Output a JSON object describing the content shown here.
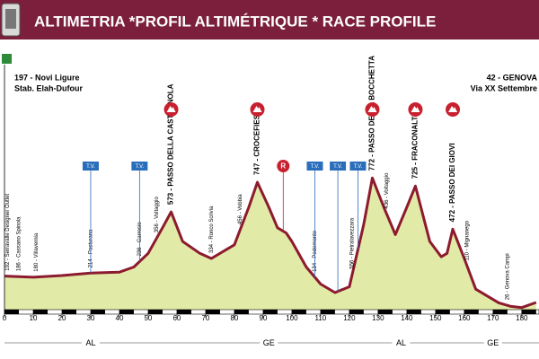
{
  "chart_data": {
    "type": "area",
    "title": "ALTIMETRIA *PROFIL ALTIMÉTRIQUE * RACE PROFILE",
    "start": {
      "name": "197 - Novi Ligure",
      "place": "Stab. Elah-Dufour"
    },
    "finish": {
      "name": "42 - GENOVA",
      "place": "Via XX Settembre"
    },
    "x": [
      0,
      10,
      20,
      30,
      40,
      45,
      50,
      55,
      58,
      62,
      68,
      72,
      80,
      85,
      88,
      92,
      95,
      98,
      100,
      105,
      110,
      115,
      120,
      125,
      128,
      132,
      136,
      140,
      143,
      148,
      152,
      154,
      156,
      160,
      164,
      168,
      172,
      176,
      180,
      185
    ],
    "values": [
      197,
      190,
      200,
      214,
      220,
      250,
      330,
      480,
      573,
      400,
      330,
      300,
      380,
      600,
      747,
      600,
      480,
      450,
      400,
      250,
      150,
      100,
      134,
      500,
      772,
      600,
      440,
      600,
      725,
      400,
      310,
      330,
      472,
      300,
      120,
      80,
      40,
      20,
      12,
      42
    ],
    "color": "#8c1b2e",
    "fill": "#e2eaa8",
    "xlim": [
      0,
      186
    ],
    "ylim": [
      0,
      900
    ],
    "xticks": [
      0,
      10,
      20,
      30,
      40,
      50,
      60,
      70,
      80,
      90,
      100,
      110,
      120,
      130,
      140,
      150,
      160,
      170,
      180
    ],
    "climbs": [
      {
        "label": "573 - PASSO DELLA CASTAGNOLA",
        "x": 58
      },
      {
        "label": "747 - CROCEFIESCHI",
        "x": 88
      },
      {
        "label": "772 - PASSO DELLA BOCCHETTA",
        "x": 128
      },
      {
        "label": "725 - FRACONALTO",
        "x": 143
      },
      {
        "label": "472 - PASSO DEI GIOVI",
        "x": 156
      }
    ],
    "towns": [
      {
        "label": "192 - Serravalle Designer Outlet",
        "x": 1
      },
      {
        "label": "186 - Cassano Spinola",
        "x": 5
      },
      {
        "label": "180 - Villavernia",
        "x": 11
      },
      {
        "label": "214 - Pasturana",
        "x": 30
      },
      {
        "label": "236 - Carrosio",
        "x": 47
      },
      {
        "label": "356 - Voltaggio",
        "x": 53
      },
      {
        "label": "334 - Ronco Scrivia",
        "x": 72
      },
      {
        "label": "456 - Vobbia",
        "x": 82
      },
      {
        "label": "134 - Pedemonte",
        "x": 108
      },
      {
        "label": "556 - Pietralavezzara",
        "x": 121
      },
      {
        "label": "436 - Voltaggio",
        "x": 133
      },
      {
        "label": "110 - Mignanego",
        "x": 161
      },
      {
        "label": "26 - Genova Campi",
        "x": 175
      }
    ],
    "tv": {
      "label": "T.V.",
      "x": [
        30,
        47,
        108,
        116,
        123
      ]
    },
    "refuel": {
      "label": "R",
      "x": 97
    },
    "regions": [
      {
        "label": "AL",
        "x": 30
      },
      {
        "label": "GE",
        "x": 92
      },
      {
        "label": "AL",
        "x": 138
      },
      {
        "label": "GE",
        "x": 170
      }
    ]
  }
}
